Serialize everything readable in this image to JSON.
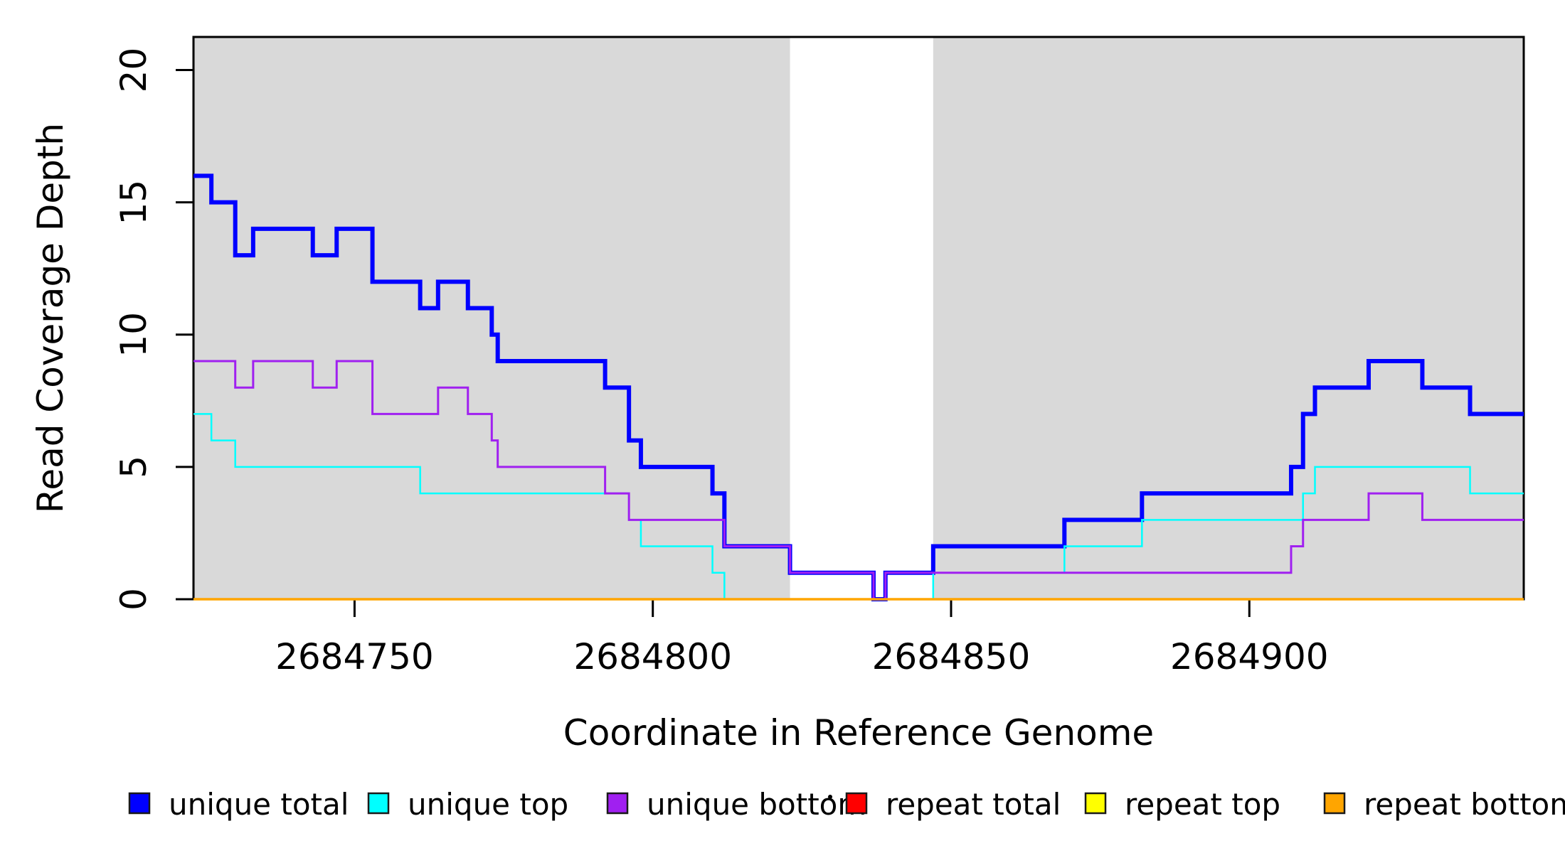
{
  "chart_data": {
    "type": "line",
    "subtype": "step-coverage-plot",
    "title": "",
    "xlabel": "Coordinate in Reference Genome",
    "ylabel": "Read Coverage Depth",
    "xlim": [
      2684723,
      2684946
    ],
    "ylim": [
      0,
      21.25
    ],
    "x_ticks": [
      {
        "value": 2684750,
        "label": "2684750"
      },
      {
        "value": 2684800,
        "label": "2684800"
      },
      {
        "value": 2684850,
        "label": "2684850"
      },
      {
        "value": 2684900,
        "label": "2684900"
      }
    ],
    "y_ticks": [
      {
        "value": 0,
        "label": "0"
      },
      {
        "value": 5,
        "label": "5"
      },
      {
        "value": 10,
        "label": "10"
      },
      {
        "value": 15,
        "label": "15"
      },
      {
        "value": 20,
        "label": "20"
      }
    ],
    "grid": false,
    "background_color": "#ffffff",
    "shade_color": "#D9D9D9",
    "shaded_regions": [
      [
        2684723,
        2684823
      ],
      [
        2684847,
        2684946
      ]
    ],
    "series": [
      {
        "name": "unique total",
        "color": "#0000FF",
        "stroke_width": 6,
        "points": [
          [
            2684723,
            16
          ],
          [
            2684726,
            15
          ],
          [
            2684730,
            13
          ],
          [
            2684733,
            14
          ],
          [
            2684743,
            13
          ],
          [
            2684747,
            14
          ],
          [
            2684753,
            12
          ],
          [
            2684761,
            11
          ],
          [
            2684764,
            12
          ],
          [
            2684769,
            11
          ],
          [
            2684773,
            10
          ],
          [
            2684774,
            9
          ],
          [
            2684792,
            8
          ],
          [
            2684796,
            6
          ],
          [
            2684798,
            5
          ],
          [
            2684810,
            4
          ],
          [
            2684812,
            2
          ],
          [
            2684823,
            1
          ],
          [
            2684837,
            0
          ],
          [
            2684839,
            1
          ],
          [
            2684847,
            2
          ],
          [
            2684869,
            3
          ],
          [
            2684882,
            4
          ],
          [
            2684907,
            5
          ],
          [
            2684909,
            7
          ],
          [
            2684911,
            8
          ],
          [
            2684920,
            9
          ],
          [
            2684929,
            8
          ],
          [
            2684937,
            7
          ],
          [
            2684946,
            7
          ]
        ]
      },
      {
        "name": "unique top",
        "color": "#00FFFF",
        "stroke_width": 2.5,
        "points": [
          [
            2684723,
            7
          ],
          [
            2684726,
            6
          ],
          [
            2684730,
            5
          ],
          [
            2684761,
            4
          ],
          [
            2684796,
            3
          ],
          [
            2684798,
            2
          ],
          [
            2684810,
            1
          ],
          [
            2684812,
            0
          ],
          [
            2684847,
            1
          ],
          [
            2684869,
            2
          ],
          [
            2684882,
            3
          ],
          [
            2684909,
            4
          ],
          [
            2684911,
            5
          ],
          [
            2684937,
            4
          ],
          [
            2684946,
            4
          ]
        ]
      },
      {
        "name": "unique bottom",
        "color": "#A020F0",
        "stroke_width": 3,
        "points": [
          [
            2684723,
            9
          ],
          [
            2684730,
            8
          ],
          [
            2684733,
            9
          ],
          [
            2684743,
            8
          ],
          [
            2684747,
            9
          ],
          [
            2684753,
            7
          ],
          [
            2684764,
            8
          ],
          [
            2684769,
            7
          ],
          [
            2684773,
            6
          ],
          [
            2684774,
            5
          ],
          [
            2684792,
            4
          ],
          [
            2684796,
            3
          ],
          [
            2684812,
            2
          ],
          [
            2684823,
            1
          ],
          [
            2684837,
            0
          ],
          [
            2684839,
            1
          ],
          [
            2684907,
            2
          ],
          [
            2684909,
            3
          ],
          [
            2684920,
            4
          ],
          [
            2684929,
            3
          ],
          [
            2684946,
            3
          ]
        ]
      },
      {
        "name": "repeat total",
        "color": "#FF0000",
        "stroke_width": 3,
        "points": [
          [
            2684723,
            0
          ],
          [
            2684946,
            0
          ]
        ]
      },
      {
        "name": "repeat top",
        "color": "#FFFF00",
        "stroke_width": 3,
        "points": [
          [
            2684723,
            0
          ],
          [
            2684946,
            0
          ]
        ]
      },
      {
        "name": "repeat bottom",
        "color": "#FFA500",
        "stroke_width": 3.5,
        "points": [
          [
            2684723,
            0
          ],
          [
            2684946,
            0
          ]
        ]
      }
    ],
    "legend": {
      "position": "bottom",
      "items": [
        {
          "label": "unique total",
          "color": "#0000FF"
        },
        {
          "label": "unique top",
          "color": "#00FFFF"
        },
        {
          "label": "unique bottom",
          "color": "#A020F0"
        },
        {
          "label": "repeat total",
          "color": "#FF0000"
        },
        {
          "label": "repeat top",
          "color": "#FFFF00"
        },
        {
          "label": "repeat bottom",
          "color": "#FFA500"
        }
      ]
    }
  }
}
